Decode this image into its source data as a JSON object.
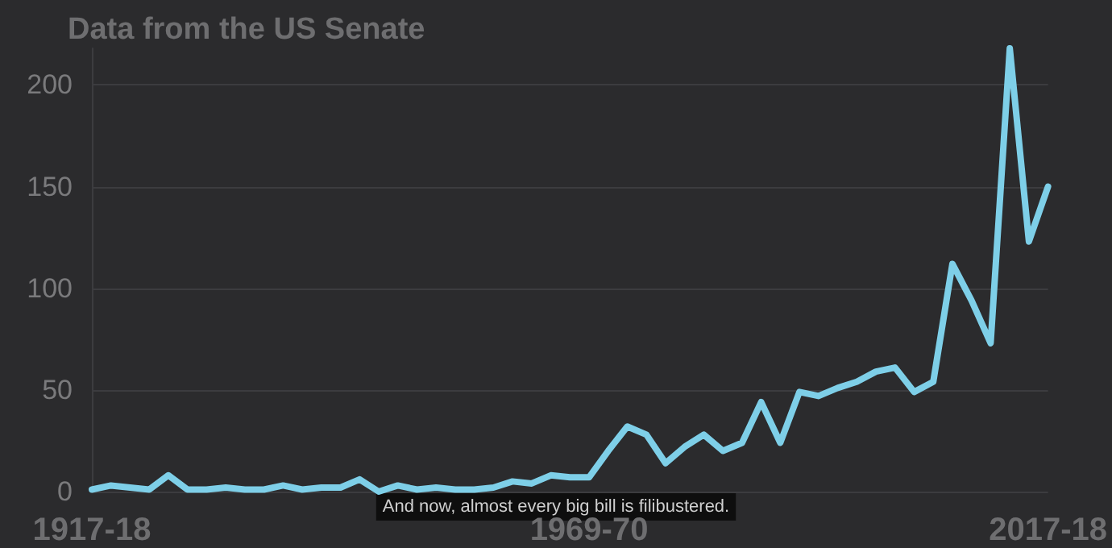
{
  "chart_data": {
    "type": "line",
    "title": "Data from the US Senate",
    "categories": [
      "1917-18",
      null,
      null,
      null,
      null,
      null,
      null,
      null,
      null,
      null,
      null,
      null,
      null,
      null,
      null,
      null,
      null,
      null,
      null,
      null,
      null,
      null,
      null,
      null,
      null,
      null,
      "1969-70",
      null,
      null,
      null,
      null,
      null,
      null,
      null,
      null,
      null,
      null,
      null,
      null,
      null,
      null,
      null,
      null,
      null,
      null,
      null,
      null,
      null,
      null,
      null,
      "2017-18"
    ],
    "series": [
      {
        "color": "#7ecfe8",
        "values": [
          1,
          3,
          2,
          1,
          8,
          1,
          1,
          2,
          1,
          1,
          3,
          1,
          2,
          2,
          6,
          0,
          3,
          1,
          2,
          1,
          1,
          2,
          5,
          4,
          8,
          7,
          7,
          20,
          32,
          28,
          14,
          22,
          28,
          20,
          24,
          44,
          24,
          49,
          47,
          51,
          54,
          59,
          61,
          49,
          54,
          112,
          94,
          73,
          218,
          123,
          150
        ]
      }
    ],
    "ylim": [
      0,
      218
    ],
    "yticks": [
      0,
      50,
      100,
      150,
      200
    ],
    "grid": "y",
    "marker": "none",
    "line_style": "solid",
    "annotations": [
      "And now, almost every big bill is filibustered."
    ]
  }
}
